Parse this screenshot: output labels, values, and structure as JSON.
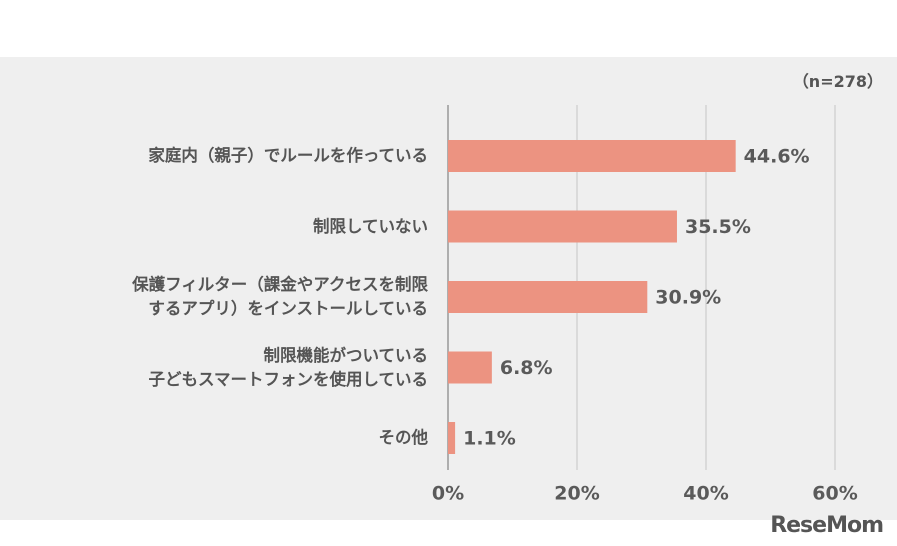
{
  "chart_data": {
    "type": "bar",
    "orientation": "horizontal",
    "note": "（n=278）",
    "categories": [
      "家庭内（親子）でルールを作っている",
      "制限していない",
      "保護フィルター（課金やアクセスを制限\nするアプリ）をインストールしている",
      "制限機能がついている\n子どもスマートフォンを使用している",
      "その他"
    ],
    "values": [
      44.6,
      35.5,
      30.9,
      6.8,
      1.1
    ],
    "value_labels": [
      "44.6%",
      "35.5%",
      "30.9%",
      "6.8%",
      "1.1%"
    ],
    "color": "#ec9381",
    "xlim": [
      0,
      60
    ],
    "xticks": [
      {
        "value": 0,
        "label": "0%"
      },
      {
        "value": 20,
        "label": "20%"
      },
      {
        "value": 40,
        "label": "40%"
      },
      {
        "value": 60,
        "label": "60%"
      }
    ],
    "grid": true,
    "watermark": "ReseMom"
  }
}
